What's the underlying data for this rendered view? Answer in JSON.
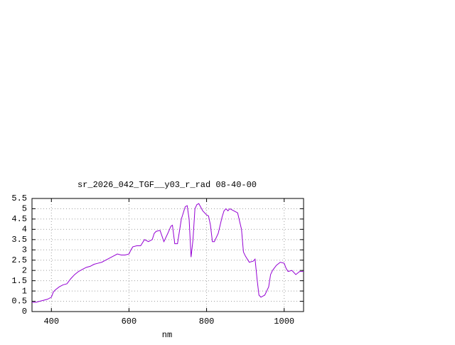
{
  "chart_data": {
    "type": "line",
    "title": "sr_2026_042_TGF__y03_r_rad 08-40-00",
    "x_label": "nm",
    "x": [
      350,
      360,
      370,
      380,
      390,
      400,
      405,
      410,
      420,
      430,
      440,
      450,
      460,
      470,
      480,
      490,
      500,
      510,
      520,
      530,
      540,
      550,
      560,
      570,
      580,
      590,
      600,
      605,
      610,
      620,
      630,
      640,
      650,
      660,
      665,
      670,
      680,
      690,
      700,
      708,
      712,
      718,
      725,
      735,
      745,
      750,
      755,
      760,
      765,
      770,
      775,
      780,
      790,
      800,
      805,
      810,
      815,
      820,
      830,
      840,
      845,
      850,
      855,
      860,
      870,
      880,
      890,
      895,
      900,
      910,
      920,
      925,
      930,
      935,
      940,
      950,
      960,
      965,
      970,
      980,
      990,
      1000,
      1005,
      1010,
      1020,
      1030,
      1040,
      1050
    ],
    "values": [
      0.45,
      0.45,
      0.5,
      0.55,
      0.6,
      0.7,
      0.95,
      1.05,
      1.2,
      1.3,
      1.35,
      1.6,
      1.8,
      1.95,
      2.05,
      2.15,
      2.2,
      2.3,
      2.35,
      2.4,
      2.5,
      2.6,
      2.7,
      2.8,
      2.75,
      2.75,
      2.8,
      3.0,
      3.15,
      3.2,
      3.2,
      3.5,
      3.4,
      3.5,
      3.8,
      3.9,
      3.95,
      3.4,
      3.8,
      4.15,
      4.2,
      3.3,
      3.3,
      4.5,
      5.1,
      5.15,
      4.5,
      2.65,
      3.5,
      5.0,
      5.2,
      5.25,
      4.9,
      4.7,
      4.65,
      4.2,
      3.4,
      3.4,
      3.8,
      4.6,
      4.9,
      5.0,
      4.9,
      5.0,
      4.9,
      4.8,
      4.0,
      2.9,
      2.7,
      2.4,
      2.45,
      2.55,
      1.6,
      0.8,
      0.7,
      0.8,
      1.2,
      1.8,
      2.0,
      2.25,
      2.4,
      2.35,
      2.1,
      1.95,
      2.0,
      1.8,
      1.95,
      1.95
    ],
    "color": "#9400d3",
    "xlim": [
      350,
      1050
    ],
    "xticks": [
      400,
      600,
      800,
      1000
    ],
    "ylim": [
      0,
      5.5
    ],
    "yticks": [
      0,
      0.5,
      1,
      1.5,
      2,
      2.5,
      3,
      3.5,
      4,
      4.5,
      5,
      5.5
    ],
    "grid": true
  }
}
